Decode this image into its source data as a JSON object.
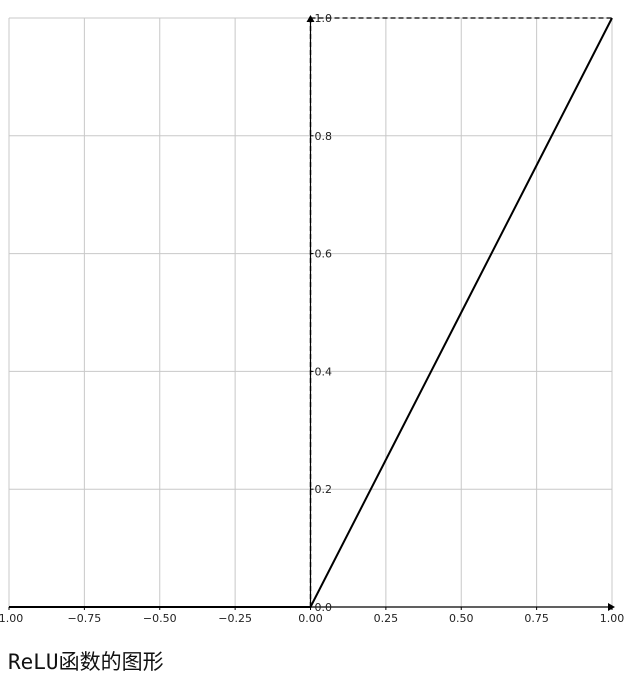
{
  "chart_data": {
    "type": "line",
    "title": "",
    "xlabel": "",
    "ylabel": "",
    "xlim": [
      -1.0,
      1.0
    ],
    "ylim": [
      0.0,
      1.0
    ],
    "grid": true,
    "x_ticks": [
      -1.0,
      -0.75,
      -0.5,
      -0.25,
      0.0,
      0.25,
      0.5,
      0.75,
      1.0
    ],
    "x_tick_labels": [
      "-1.00",
      "−0.75",
      "−0.50",
      "−0.25",
      "0.00",
      "0.25",
      "0.50",
      "0.75",
      "1.00"
    ],
    "y_ticks": [
      0.0,
      0.2,
      0.4,
      0.6,
      0.8,
      1.0
    ],
    "y_tick_labels": [
      "0.0",
      "0.2",
      "0.4",
      "0.6",
      "0.8",
      "1.0"
    ],
    "series": [
      {
        "x": [
          -1.0,
          -0.75,
          -0.5,
          -0.25,
          0.0,
          0.25,
          0.5,
          0.75,
          1.0
        ],
        "y": [
          0.0,
          0.0,
          0.0,
          0.0,
          0.0,
          0.25,
          0.5,
          0.75,
          1.0
        ],
        "color": "#000000"
      }
    ],
    "reference_lines": [
      {
        "orientation": "vertical",
        "value": 0.0,
        "style": "dashed",
        "color": "#000000"
      },
      {
        "orientation": "horizontal",
        "value": 1.0,
        "style": "dashed",
        "color": "#000000"
      }
    ],
    "axis_spines": "centered-at-origin-with-arrows",
    "grid_color": "#c8c8c8"
  },
  "caption": "ReLU函数的图形"
}
